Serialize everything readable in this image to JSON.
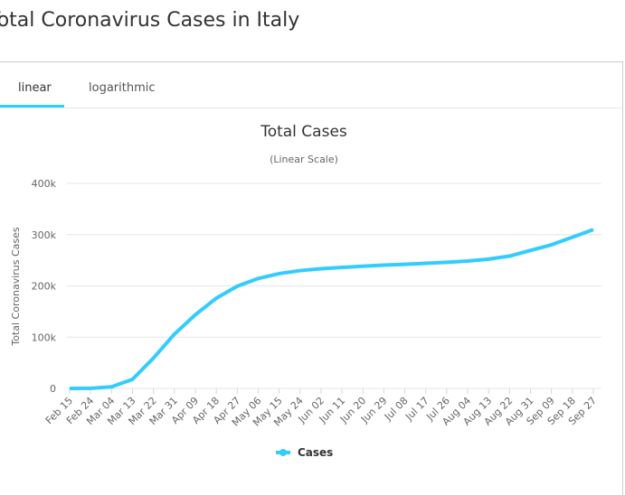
{
  "page": {
    "title": "Total Coronavirus Cases in Italy",
    "tabs": [
      "linear",
      "logarithmic"
    ]
  },
  "chart_data": {
    "type": "line",
    "title": "Total Cases",
    "subtitle": "(Linear Scale)",
    "y_label": "Total Coronavirus Cases",
    "categories": [
      "Feb 15",
      "Feb 24",
      "Mar 04",
      "Mar 13",
      "Mar 22",
      "Mar 31",
      "Apr 09",
      "Apr 18",
      "Apr 27",
      "May 06",
      "May 15",
      "May 24",
      "Jun 02",
      "Jun 11",
      "Jun 20",
      "Jun 29",
      "Jul 08",
      "Jul 17",
      "Jul 26",
      "Aug 04",
      "Aug 13",
      "Aug 22",
      "Aug 31",
      "Sep 09",
      "Sep 18",
      "Sep 27"
    ],
    "series": [
      {
        "name": "Cases",
        "color": "#33ccff",
        "values": [
          3,
          229,
          3089,
          17660,
          59138,
          105792,
          143626,
          175925,
          199414,
          214457,
          223885,
          229858,
          233515,
          236142,
          238275,
          240436,
          242149,
          243967,
          246118,
          248419,
          252235,
          258136,
          269214,
          280153,
          294932,
          309870
        ]
      }
    ],
    "ylim": [
      0,
      400000
    ],
    "yticks": [
      0,
      {
        "value": 100000,
        "label": "100k"
      },
      {
        "value": 200000,
        "label": "200k"
      },
      {
        "value": 300000,
        "label": "300k"
      },
      {
        "value": 400000,
        "label": "400k"
      }
    ],
    "grid": true
  }
}
